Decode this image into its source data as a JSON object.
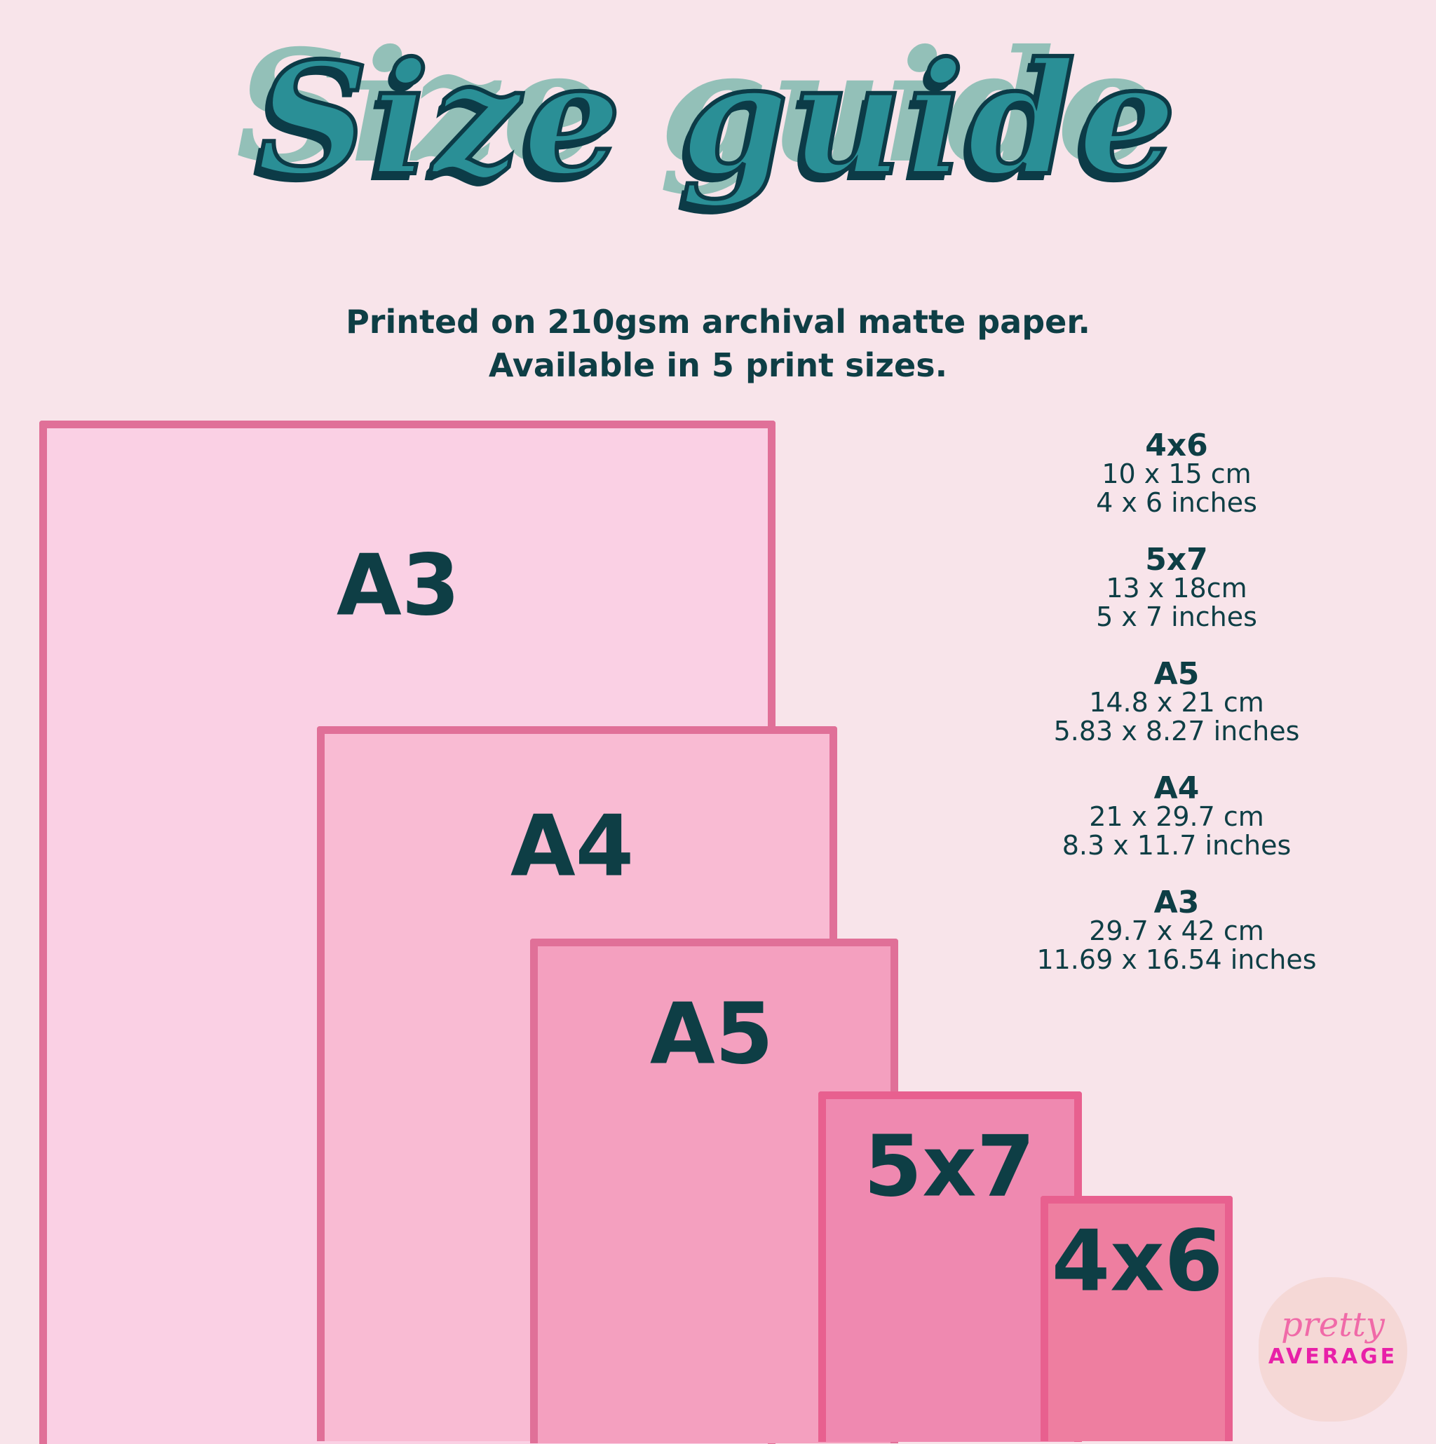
{
  "title": "Size guide",
  "subtitle": [
    "Printed on 210gsm archival matte paper.",
    "Available in 5 print sizes."
  ],
  "sizes": [
    {
      "name": "4x6",
      "cm": "10 x 15 cm",
      "inches": "4 x 6 inches"
    },
    {
      "name": "5x7",
      "cm": "13 x 18cm",
      "inches": "5 x 7 inches"
    },
    {
      "name": "A5",
      "cm": "14.8 x 21 cm",
      "inches": "5.83 x 8.27 inches"
    },
    {
      "name": "A4",
      "cm": "21 x 29.7 cm",
      "inches": "8.3 x 11.7 inches"
    },
    {
      "name": "A3",
      "cm": "29.7 x 42 cm",
      "inches": "11.69 x 16.54 inches"
    }
  ],
  "paper_labels": {
    "a3": "A3",
    "a4": "A4",
    "a5": "A5",
    "s5x7": "5x7",
    "s4x6": "4x6"
  },
  "colors": {
    "background": "#f8e4ea",
    "text": "#0e3e45",
    "a3": "#fad0e4",
    "a4": "#f9bbd3",
    "a5": "#f4a0bf",
    "s5x7": "#ef89b0",
    "s4x6": "#ee7ea0",
    "border": "#e07098"
  },
  "logo": {
    "line1": "pretty",
    "line2": "AVERAGE"
  }
}
